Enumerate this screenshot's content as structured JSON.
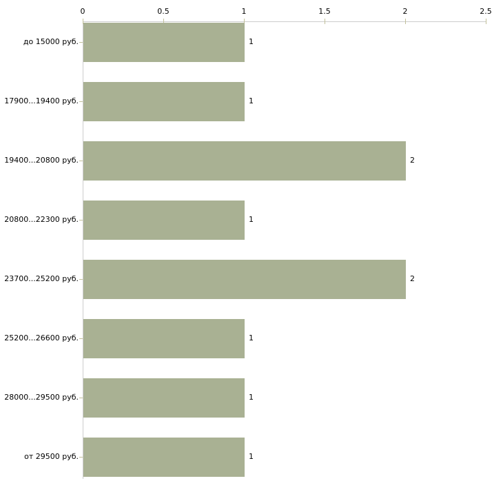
{
  "chart_data": {
    "type": "bar",
    "orientation": "horizontal",
    "title": "",
    "categories": [
      "до 15000 руб.",
      "17900...19400 руб.",
      "19400...20800 руб.",
      "20800...22300 руб.",
      "23700...25200 руб.",
      "25200...26600 руб.",
      "28000...29500 руб.",
      "от 29500 руб."
    ],
    "values": [
      1,
      1,
      2,
      1,
      2,
      1,
      1,
      1
    ],
    "value_labels": [
      "1",
      "1",
      "2",
      "1",
      "2",
      "1",
      "1",
      "1"
    ],
    "x_ticks": [
      "0",
      "0.5",
      "1",
      "1.5",
      "2",
      "2.5"
    ],
    "x_tick_values": [
      0,
      0.5,
      1,
      1.5,
      2,
      2.5
    ],
    "xlim": [
      0,
      2.5
    ],
    "xaxis_position": "top",
    "grid": false,
    "legend_position": "none",
    "colors": {
      "bar": "#a9b193",
      "axis_line": "#cccccc",
      "tick_mark": "#c2c099",
      "text": "#000000",
      "background": "#ffffff"
    }
  }
}
